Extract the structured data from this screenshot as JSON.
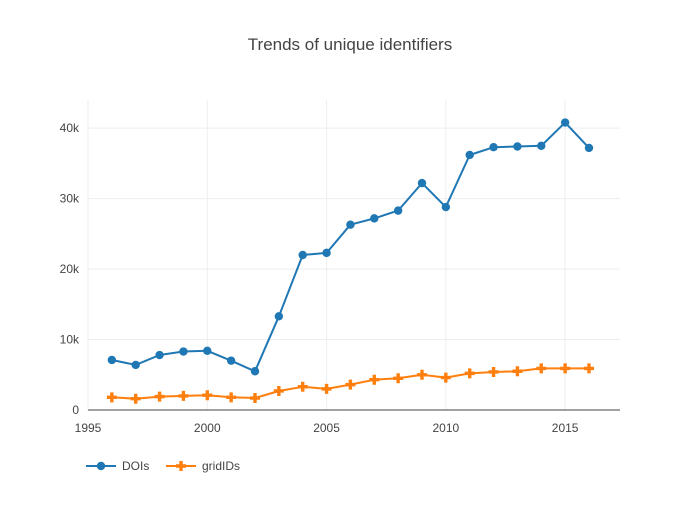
{
  "chart_data": {
    "type": "line",
    "title": "Trends of unique identifiers",
    "xlabel": "",
    "ylabel": "",
    "x": [
      1996,
      1997,
      1998,
      1999,
      2000,
      2001,
      2002,
      2003,
      2004,
      2005,
      2006,
      2007,
      2008,
      2009,
      2010,
      2011,
      2012,
      2013,
      2014,
      2015,
      2016
    ],
    "series": [
      {
        "name": "DOIs",
        "color": "#1f77b4",
        "marker": "circle",
        "values": [
          7100,
          6400,
          7800,
          8300,
          8400,
          7000,
          5500,
          13300,
          22000,
          22300,
          26300,
          27200,
          28300,
          32200,
          28800,
          36200,
          37300,
          37400,
          37500,
          40800,
          37200
        ]
      },
      {
        "name": "gridIDs",
        "color": "#ff7f0e",
        "marker": "cross",
        "values": [
          1800,
          1600,
          1900,
          2000,
          2100,
          1800,
          1700,
          2700,
          3300,
          3000,
          3600,
          4300,
          4500,
          5000,
          4600,
          5200,
          5400,
          5500,
          5900,
          5900,
          5900
        ]
      }
    ],
    "xlim": [
      1995,
      2017.3
    ],
    "ylim": [
      0,
      44000
    ],
    "xticks": [
      1995,
      2000,
      2005,
      2010,
      2015
    ],
    "xtick_labels": [
      "1995",
      "2000",
      "2005",
      "2010",
      "2015"
    ],
    "yticks": [
      0,
      10000,
      20000,
      30000,
      40000
    ],
    "ytick_labels": [
      "0",
      "10k",
      "20k",
      "30k",
      "40k"
    ],
    "grid": true,
    "legend_position": "bottom-left"
  }
}
